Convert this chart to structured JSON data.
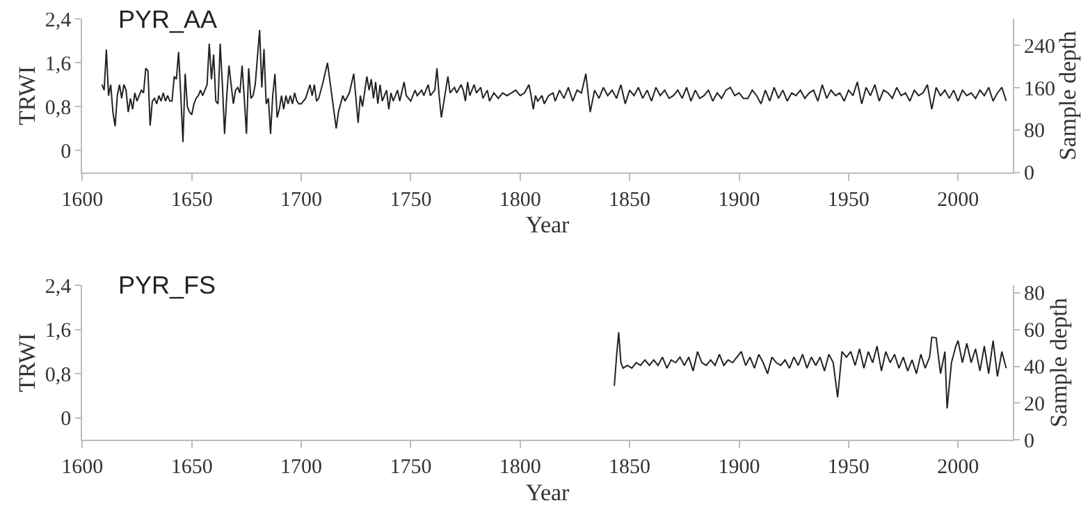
{
  "chart_data": [
    {
      "type": "line",
      "title": "PYR_AA",
      "xlabel": "Year",
      "ylabel": "TRWI",
      "y2label": "Sample depth",
      "xlim": [
        1600,
        2025
      ],
      "xticks": [
        1600,
        1650,
        1700,
        1750,
        1800,
        1850,
        1900,
        1950,
        2000
      ],
      "ylim": [
        -0.4,
        2.4
      ],
      "yticks": [
        0,
        {
          "value": 0.8,
          "label": "0,8"
        },
        {
          "value": 1.6,
          "label": "1,6"
        },
        {
          "value": 2.4,
          "label": "2,4"
        }
      ],
      "y2lim": [
        0,
        290
      ],
      "y2ticks": [
        0,
        80,
        160,
        240
      ],
      "series": [
        {
          "color": "#222222",
          "x": [
            1609,
            1610,
            1611,
            1612,
            1613,
            1614,
            1615,
            1616,
            1617,
            1618,
            1619,
            1620,
            1621,
            1622,
            1623,
            1624,
            1625,
            1626,
            1627,
            1628,
            1629,
            1630,
            1631,
            1632,
            1633,
            1634,
            1635,
            1636,
            1637,
            1638,
            1639,
            1640,
            1641,
            1642,
            1643,
            1644,
            1645,
            1646,
            1647,
            1648,
            1649,
            1650,
            1651,
            1652,
            1653,
            1654,
            1655,
            1656,
            1657,
            1658,
            1659,
            1660,
            1661,
            1662,
            1663,
            1664,
            1665,
            1666,
            1667,
            1668,
            1669,
            1670,
            1671,
            1672,
            1673,
            1674,
            1675,
            1676,
            1677,
            1678,
            1679,
            1680,
            1681,
            1682,
            1683,
            1684,
            1685,
            1686,
            1687,
            1688,
            1689,
            1690,
            1691,
            1692,
            1693,
            1694,
            1695,
            1696,
            1697,
            1698,
            1699,
            1700,
            1702,
            1704,
            1705,
            1706,
            1707,
            1708,
            1710,
            1712,
            1714,
            1716,
            1717,
            1719,
            1720,
            1722,
            1724,
            1726,
            1727,
            1728,
            1730,
            1731,
            1732,
            1733,
            1734,
            1735,
            1736,
            1737,
            1739,
            1740,
            1741,
            1742,
            1744,
            1745,
            1747,
            1748,
            1749,
            1750,
            1752,
            1753,
            1755,
            1756,
            1758,
            1759,
            1761,
            1762,
            1763,
            1764,
            1766,
            1767,
            1768,
            1770,
            1771,
            1773,
            1774,
            1775,
            1776,
            1777,
            1779,
            1780,
            1782,
            1783,
            1785,
            1786,
            1788,
            1790,
            1792,
            1794,
            1796,
            1798,
            1800,
            1802,
            1804,
            1805,
            1806,
            1807,
            1808,
            1810,
            1811,
            1813,
            1815,
            1816,
            1818,
            1820,
            1822,
            1824,
            1826,
            1828,
            1830,
            1832,
            1834,
            1836,
            1838,
            1840,
            1842,
            1844,
            1846,
            1848,
            1850,
            1852,
            1854,
            1856,
            1858,
            1860,
            1862,
            1864,
            1866,
            1868,
            1870,
            1872,
            1874,
            1876,
            1878,
            1880,
            1882,
            1884,
            1886,
            1888,
            1890,
            1892,
            1894,
            1896,
            1898,
            1900,
            1902,
            1904,
            1906,
            1908,
            1910,
            1912,
            1914,
            1916,
            1918,
            1920,
            1922,
            1924,
            1926,
            1928,
            1930,
            1932,
            1934,
            1936,
            1938,
            1940,
            1942,
            1944,
            1946,
            1948,
            1950,
            1952,
            1954,
            1956,
            1958,
            1960,
            1962,
            1964,
            1966,
            1968,
            1970,
            1972,
            1974,
            1976,
            1978,
            1980,
            1982,
            1984,
            1986,
            1988,
            1990,
            1992,
            1994,
            1996,
            1998,
            2000,
            2002,
            2004,
            2006,
            2008,
            2010,
            2012,
            2014,
            2016,
            2018,
            2020,
            2022
          ],
          "values": [
            1.2,
            1.1,
            1.84,
            1.0,
            1.2,
            0.7,
            0.44,
            1.0,
            1.2,
            0.95,
            1.2,
            1.1,
            0.7,
            0.95,
            0.75,
            1.05,
            0.9,
            1.0,
            1.1,
            1.05,
            1.5,
            1.45,
            0.45,
            0.9,
            0.95,
            0.85,
            1.0,
            0.9,
            1.05,
            0.9,
            1.0,
            0.9,
            0.9,
            1.35,
            1.3,
            1.8,
            1.0,
            0.15,
            1.4,
            0.8,
            0.7,
            0.65,
            0.85,
            0.95,
            1.0,
            1.1,
            1.0,
            1.1,
            1.2,
            1.95,
            1.3,
            1.75,
            0.9,
            0.85,
            1.95,
            1.2,
            0.3,
            1.0,
            1.55,
            1.2,
            0.85,
            1.1,
            1.15,
            1.05,
            1.55,
            0.95,
            0.3,
            1.5,
            0.95,
            1.0,
            1.2,
            1.7,
            2.2,
            1.15,
            1.85,
            0.85,
            0.95,
            0.3,
            1.0,
            1.4,
            0.6,
            0.75,
            1.0,
            0.75,
            1.0,
            0.85,
            1.0,
            0.85,
            1.05,
            0.9,
            0.85,
            0.85,
            0.95,
            1.2,
            1.0,
            1.2,
            0.9,
            0.95,
            1.25,
            1.6,
            1.0,
            0.4,
            0.7,
            1.0,
            0.9,
            1.05,
            1.4,
            0.5,
            1.0,
            0.8,
            1.35,
            1.1,
            1.3,
            0.95,
            1.25,
            0.85,
            1.2,
            0.9,
            1.1,
            0.75,
            1.05,
            0.9,
            1.1,
            0.9,
            1.25,
            1.0,
            0.95,
            0.9,
            1.1,
            1.0,
            1.1,
            1.0,
            1.2,
            1.0,
            1.1,
            1.5,
            1.0,
            0.6,
            1.1,
            1.35,
            1.05,
            1.15,
            1.05,
            1.2,
            1.1,
            0.9,
            1.25,
            1.0,
            1.2,
            1.05,
            1.15,
            0.95,
            1.1,
            0.9,
            1.05,
            0.95,
            1.05,
            1.0,
            1.05,
            1.1,
            1.0,
            1.05,
            1.2,
            1.0,
            0.75,
            1.0,
            0.9,
            1.0,
            0.85,
            1.0,
            1.05,
            0.9,
            1.1,
            0.95,
            1.15,
            0.9,
            1.1,
            1.05,
            1.4,
            0.7,
            1.1,
            0.95,
            1.15,
            1.0,
            1.1,
            0.95,
            1.2,
            0.85,
            1.1,
            1.0,
            1.15,
            0.95,
            1.1,
            0.9,
            1.15,
            1.0,
            1.1,
            0.95,
            1.0,
            1.1,
            0.95,
            1.15,
            0.9,
            1.1,
            0.95,
            1.0,
            1.1,
            0.9,
            1.05,
            0.95,
            1.1,
            1.15,
            1.0,
            1.05,
            0.95,
            0.95,
            1.1,
            1.0,
            0.85,
            1.1,
            0.9,
            1.15,
            0.95,
            1.1,
            0.9,
            1.05,
            1.0,
            1.1,
            0.95,
            1.05,
            1.1,
            0.9,
            1.2,
            0.95,
            1.1,
            1.0,
            1.05,
            0.9,
            1.1,
            1.0,
            1.25,
            0.85,
            1.15,
            1.0,
            1.2,
            0.9,
            1.1,
            1.05,
            0.95,
            1.15,
            1.0,
            1.05,
            0.9,
            1.1,
            1.0,
            1.05,
            1.2,
            0.75,
            1.15,
            1.0,
            1.1,
            0.95,
            1.1,
            0.9,
            1.1,
            1.0,
            1.05,
            0.95,
            1.1,
            1.0,
            1.15,
            0.9,
            1.05,
            1.15,
            0.9
          ]
        }
      ]
    },
    {
      "type": "line",
      "title": "PYR_FS",
      "xlabel": "Year",
      "ylabel": "TRWI",
      "y2label": "Sample depth",
      "xlim": [
        1600,
        2025
      ],
      "xticks": [
        1600,
        1650,
        1700,
        1750,
        1800,
        1850,
        1900,
        1950,
        2000
      ],
      "ylim": [
        -0.4,
        2.4
      ],
      "yticks": [
        0,
        {
          "value": 0.8,
          "label": "0,8"
        },
        {
          "value": 1.6,
          "label": "1,6"
        },
        {
          "value": 2.4,
          "label": "2,4"
        }
      ],
      "y2lim": [
        0,
        84
      ],
      "y2ticks": [
        0,
        20,
        40,
        60,
        80
      ],
      "series": [
        {
          "color": "#222222",
          "x": [
            1843,
            1844,
            1845,
            1846,
            1847,
            1849,
            1851,
            1853,
            1855,
            1857,
            1859,
            1861,
            1863,
            1865,
            1867,
            1869,
            1871,
            1873,
            1875,
            1877,
            1879,
            1881,
            1883,
            1885,
            1887,
            1889,
            1891,
            1893,
            1895,
            1897,
            1899,
            1901,
            1903,
            1905,
            1907,
            1909,
            1911,
            1913,
            1915,
            1917,
            1919,
            1921,
            1923,
            1925,
            1927,
            1929,
            1931,
            1933,
            1935,
            1937,
            1939,
            1941,
            1943,
            1945,
            1947,
            1949,
            1951,
            1953,
            1955,
            1957,
            1959,
            1961,
            1963,
            1965,
            1967,
            1969,
            1971,
            1973,
            1975,
            1977,
            1979,
            1981,
            1983,
            1985,
            1987,
            1988,
            1990,
            1992,
            1994,
            1995,
            1997,
            1999,
            2000,
            2002,
            2004,
            2006,
            2008,
            2010,
            2012,
            2014,
            2016,
            2018,
            2020,
            2022
          ],
          "values": [
            0.58,
            1.1,
            1.55,
            1.0,
            0.9,
            0.95,
            0.9,
            1.0,
            0.95,
            1.05,
            0.95,
            1.05,
            0.95,
            1.1,
            0.9,
            1.05,
            1.0,
            1.1,
            0.95,
            1.1,
            0.85,
            1.2,
            1.0,
            0.95,
            1.05,
            0.95,
            1.15,
            0.95,
            1.05,
            1.0,
            1.1,
            1.2,
            0.95,
            1.1,
            0.9,
            1.15,
            1.0,
            0.8,
            1.1,
            1.0,
            0.95,
            1.05,
            0.9,
            1.1,
            0.95,
            1.15,
            0.9,
            1.1,
            0.95,
            1.1,
            0.85,
            1.15,
            1.0,
            0.37,
            1.2,
            1.1,
            1.2,
            0.95,
            1.25,
            0.9,
            1.2,
            1.0,
            1.3,
            0.85,
            1.2,
            1.0,
            1.15,
            0.9,
            1.1,
            0.85,
            1.05,
            0.8,
            1.15,
            0.9,
            1.1,
            1.46,
            1.45,
            0.8,
            1.2,
            0.17,
            1.0,
            1.3,
            1.4,
            1.0,
            1.35,
            1.0,
            1.25,
            0.85,
            1.3,
            0.8,
            1.4,
            0.75,
            1.2,
            0.9
          ]
        }
      ]
    }
  ]
}
